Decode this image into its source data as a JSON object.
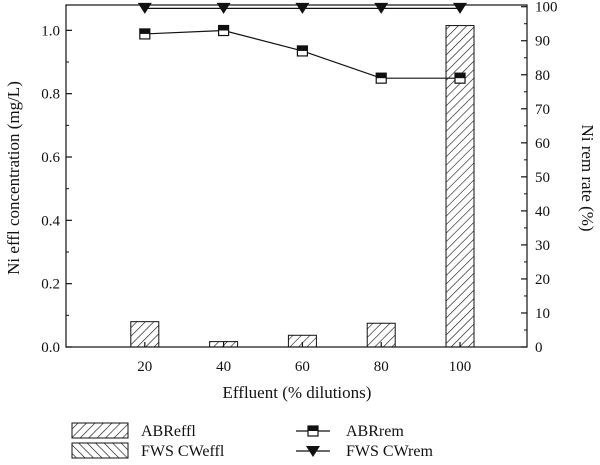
{
  "chart_data": {
    "type": "bar",
    "xlabel": "Effluent (% dilutions)",
    "ylabel": "Ni effl concentration (mg/L)",
    "y2label": "Ni rem rate (%)",
    "x": [
      20,
      40,
      60,
      80,
      100
    ],
    "xlim": [
      0,
      117
    ],
    "ylim": [
      0,
      1.08
    ],
    "y2lim": [
      0,
      100.5
    ],
    "xticks": [
      "20",
      "40",
      "60",
      "80",
      "100"
    ],
    "yticks": [
      "0.0",
      "0.2",
      "0.4",
      "0.6",
      "0.8",
      "1.0"
    ],
    "y2ticks": [
      "0",
      "10",
      "20",
      "30",
      "40",
      "50",
      "60",
      "70",
      "80",
      "90",
      "100"
    ],
    "bars": [
      {
        "name": "ABReffl",
        "x": [
          20
        ],
        "values": [
          0.08
        ],
        "hatch": "forward"
      },
      {
        "name": "ABReffl",
        "x": [
          40
        ],
        "values": [
          0.017
        ],
        "hatch": "forward"
      },
      {
        "name": "ABReffl",
        "x": [
          60
        ],
        "values": [
          0.037
        ],
        "hatch": "forward"
      },
      {
        "name": "ABReffl",
        "x": [
          80
        ],
        "values": [
          0.075
        ],
        "hatch": "forward"
      },
      {
        "name": "ABReffl",
        "x": [
          100
        ],
        "values": [
          1.015
        ],
        "hatch": "forward"
      }
    ],
    "lines": [
      {
        "name": "ABRrem",
        "axis": "right",
        "marker": "half-filled-square",
        "x": [
          20,
          40,
          60,
          80,
          100
        ],
        "values": [
          92,
          93,
          87,
          79,
          79
        ]
      },
      {
        "name": "FWS CWrem",
        "axis": "right",
        "marker": "down-triangle",
        "x": [
          20,
          40,
          60,
          80,
          100
        ],
        "values": [
          99.5,
          99.5,
          99.5,
          99.5,
          99.5
        ]
      }
    ],
    "legend": {
      "placement": "bottom",
      "items": [
        {
          "label": "ABReffl",
          "swatch": "forward-hatch"
        },
        {
          "label": "FWS CWeffl",
          "swatch": "back-hatch"
        },
        {
          "label": "ABRrem",
          "swatch": "line-square"
        },
        {
          "label": "FWS CWrem",
          "swatch": "line-triangle"
        }
      ]
    },
    "grid": false
  }
}
